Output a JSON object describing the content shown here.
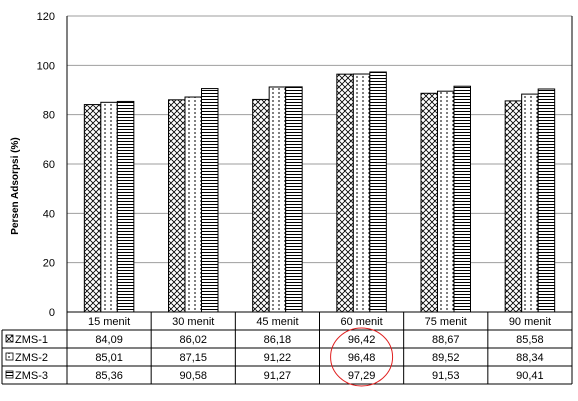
{
  "chart_data": {
    "type": "bar",
    "ylabel": "Persen Adsorpsi (%)",
    "ylim": [
      0,
      120
    ],
    "yticks": [
      0,
      20,
      40,
      60,
      80,
      100,
      120
    ],
    "grid": true,
    "legend": "data-table-below",
    "categories": [
      "15 menit",
      "30 menit",
      "45 menit",
      "60 menit",
      "75 menit",
      "90 menit"
    ],
    "series": [
      {
        "name": "ZMS-1",
        "pattern": "crosshatch",
        "values": [
          84.09,
          86.02,
          86.18,
          96.42,
          88.67,
          85.58
        ],
        "labels": [
          "84,09",
          "86,02",
          "86,18",
          "96,42",
          "88,67",
          "85,58"
        ]
      },
      {
        "name": "ZMS-2",
        "pattern": "dotted",
        "values": [
          85.01,
          87.15,
          91.22,
          96.48,
          89.52,
          88.34
        ],
        "labels": [
          "85,01",
          "87,15",
          "91,22",
          "96,48",
          "89,52",
          "88,34"
        ]
      },
      {
        "name": "ZMS-3",
        "pattern": "horizontal-stripes",
        "values": [
          85.36,
          90.58,
          91.27,
          97.29,
          91.53,
          90.41
        ],
        "labels": [
          "85,36",
          "90,58",
          "91,27",
          "97,29",
          "91,53",
          "90,41"
        ]
      }
    ],
    "annotation": {
      "shape": "circle",
      "color": "#e02020",
      "category": "60 menit"
    }
  }
}
